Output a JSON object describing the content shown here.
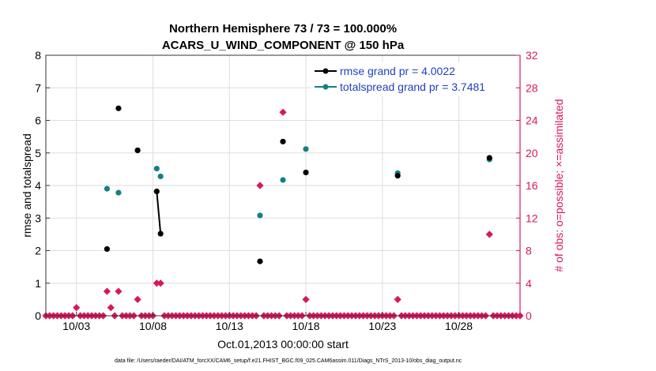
{
  "colors": {
    "rmse": "#000000",
    "spread": "#138181",
    "obs": "#d8175c",
    "grid": "#dddddd",
    "legend_text": "#1f3fbf"
  },
  "chart_data": {
    "type": "scatter",
    "title": [
      "Northern Hemisphere 73 / 73 = 100.000%",
      "ACARS_U_WIND_COMPONENT @ 150 hPa"
    ],
    "xlabel": "Oct.01,2013 00:00:00 start",
    "ylabel_left": "rmse and totalspread",
    "ylabel_right": "# of obs: o=possible; ×=assimilated",
    "xlim": [
      1,
      32
    ],
    "ylim_left": [
      0,
      8
    ],
    "ylim_right": [
      0,
      32
    ],
    "x_ticks": [
      3,
      8,
      13,
      18,
      23,
      28
    ],
    "x_tick_labels": [
      "10/03",
      "10/08",
      "10/13",
      "10/18",
      "10/23",
      "10/28"
    ],
    "y_ticks_left": [
      0,
      1,
      2,
      3,
      4,
      5,
      6,
      7,
      8
    ],
    "y_ticks_right": [
      0,
      4,
      8,
      12,
      16,
      20,
      24,
      28,
      32
    ],
    "legend": [
      "rmse grand pr = 4.0022",
      "totalspread grand pr = 3.7481"
    ],
    "footnote": "data file: /Users/raeder/DAI/ATM_forcXX/CAM6_setup/f.e21.FHIST_BGC.f09_025.CAM6assim.011/Diags_NTrS_2013-10/obs_diag_output.nc",
    "series": [
      {
        "name": "rmse",
        "points": [
          [
            5.0,
            2.05
          ],
          [
            5.75,
            6.37
          ],
          [
            7.0,
            5.08
          ],
          [
            8.25,
            3.82
          ],
          [
            8.5,
            2.52
          ],
          [
            15.0,
            1.67
          ],
          [
            16.5,
            5.35
          ],
          [
            18.0,
            4.4
          ],
          [
            24.0,
            4.3
          ],
          [
            30.0,
            4.85
          ]
        ],
        "connected_pairs": [
          [
            3,
            4
          ]
        ]
      },
      {
        "name": "totalspread",
        "points": [
          [
            5.0,
            3.9
          ],
          [
            5.75,
            3.78
          ],
          [
            7.0,
            5.08
          ],
          [
            8.25,
            4.52
          ],
          [
            8.5,
            4.28
          ],
          [
            15.0,
            3.08
          ],
          [
            16.5,
            4.17
          ],
          [
            18.0,
            5.12
          ],
          [
            24.0,
            4.38
          ],
          [
            30.0,
            4.8
          ]
        ]
      },
      {
        "name": "obs_count",
        "axis": "right",
        "nonzero": [
          [
            3.0,
            1
          ],
          [
            5.0,
            3
          ],
          [
            5.25,
            1
          ],
          [
            5.75,
            3
          ],
          [
            7.0,
            2
          ],
          [
            8.25,
            4
          ],
          [
            8.5,
            4
          ],
          [
            15.0,
            16
          ],
          [
            16.5,
            25
          ],
          [
            18.0,
            2
          ],
          [
            24.0,
            2
          ],
          [
            30.0,
            10
          ]
        ],
        "step": 0.25
      }
    ]
  }
}
